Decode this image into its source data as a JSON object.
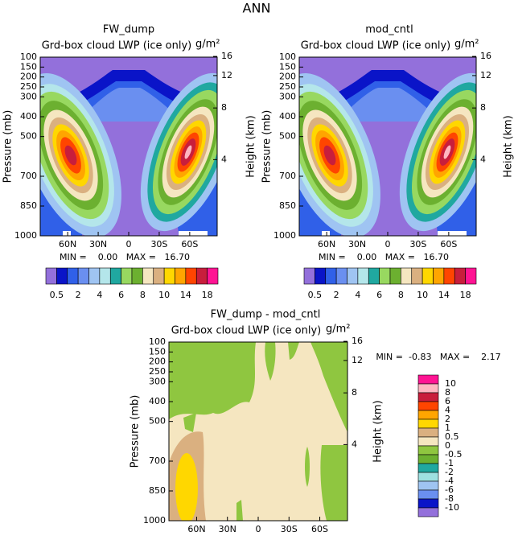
{
  "title": "ANN",
  "chart_data": [
    {
      "type": "contour",
      "title": "FW_dump",
      "subtitle": "Grd-box cloud LWP (ice only)",
      "units": "g/m²",
      "ylabel": "Pressure (mb)",
      "y2label": "Height (km)",
      "xlim": [
        87,
        -87
      ],
      "xticks": [
        {
          "value": 60,
          "label": "60N"
        },
        {
          "value": 30,
          "label": "30N"
        },
        0,
        {
          "value": -30,
          "label": "30S"
        },
        {
          "value": -60,
          "label": "60S"
        }
      ],
      "ylim": [
        1000,
        100
      ],
      "yticks": [
        100,
        150,
        200,
        250,
        300,
        400,
        500,
        700,
        850,
        1000
      ],
      "y2ticks": [
        4,
        8,
        12,
        16
      ],
      "stats": "MIN =    0.00   MAX =   16.70",
      "colorbar": {
        "orientation": "horizontal",
        "labels": [
          0.5,
          2,
          4,
          6,
          8,
          10,
          14,
          18
        ],
        "colors": [
          "#9370db",
          "#0a14c8",
          "#3060e8",
          "#6a8ff0",
          "#9fc4f2",
          "#b4e6ea",
          "#20a8a0",
          "#98d860",
          "#6cb030",
          "#f5e6c0",
          "#dab080",
          "#ffd700",
          "#ffa500",
          "#ff4500",
          "#c81e3c",
          "#ff1493"
        ]
      }
    },
    {
      "type": "contour",
      "title": "mod_cntl",
      "subtitle": "Grd-box cloud LWP (ice only)",
      "units": "g/m²",
      "ylabel": "Pressure (mb)",
      "y2label": "Height (km)",
      "xlim": [
        87,
        -87
      ],
      "xticks": [
        {
          "value": 60,
          "label": "60N"
        },
        {
          "value": 30,
          "label": "30N"
        },
        0,
        {
          "value": -30,
          "label": "30S"
        },
        {
          "value": -60,
          "label": "60S"
        }
      ],
      "ylim": [
        1000,
        100
      ],
      "yticks": [
        100,
        150,
        200,
        250,
        300,
        400,
        500,
        700,
        850,
        1000
      ],
      "y2ticks": [
        4,
        8,
        12,
        16
      ],
      "stats": "MIN =    0.00   MAX =   16.70",
      "colorbar": {
        "orientation": "horizontal",
        "labels": [
          0.5,
          2,
          4,
          6,
          8,
          10,
          14,
          18
        ],
        "colors": [
          "#9370db",
          "#0a14c8",
          "#3060e8",
          "#6a8ff0",
          "#9fc4f2",
          "#b4e6ea",
          "#20a8a0",
          "#98d860",
          "#6cb030",
          "#f5e6c0",
          "#dab080",
          "#ffd700",
          "#ffa500",
          "#ff4500",
          "#c81e3c",
          "#ff1493"
        ]
      }
    },
    {
      "type": "contour",
      "title": "FW_dump - mod_cntl",
      "subtitle": "Grd-box cloud LWP (ice only)",
      "units": "g/m²",
      "ylabel": "Pressure (mb)",
      "y2label": "Height (km)",
      "xlim": [
        87,
        -87
      ],
      "xticks": [
        {
          "value": 60,
          "label": "60N"
        },
        {
          "value": 30,
          "label": "30N"
        },
        0,
        {
          "value": -30,
          "label": "30S"
        },
        {
          "value": -60,
          "label": "60S"
        }
      ],
      "ylim": [
        1000,
        100
      ],
      "yticks": [
        100,
        150,
        200,
        250,
        300,
        400,
        500,
        700,
        850,
        1000
      ],
      "y2ticks": [
        4,
        8,
        12,
        16
      ],
      "stats": "MIN =  -0.83   MAX =    2.17",
      "colorbar": {
        "orientation": "vertical",
        "labels": [
          10,
          8,
          6,
          4,
          2,
          1,
          0.5,
          0,
          -0.5,
          -1,
          -2,
          -4,
          -6,
          -8,
          -10
        ],
        "colors": [
          "#ff1493",
          "#ffb6c1",
          "#c81e3c",
          "#ff4500",
          "#ffa500",
          "#ffd700",
          "#dab080",
          "#f5e6c0",
          "#8fc640",
          "#6cb030",
          "#20a8a0",
          "#9ee0e0",
          "#9fc4f2",
          "#6a8ff0",
          "#0a14c8",
          "#9370db"
        ]
      }
    }
  ]
}
